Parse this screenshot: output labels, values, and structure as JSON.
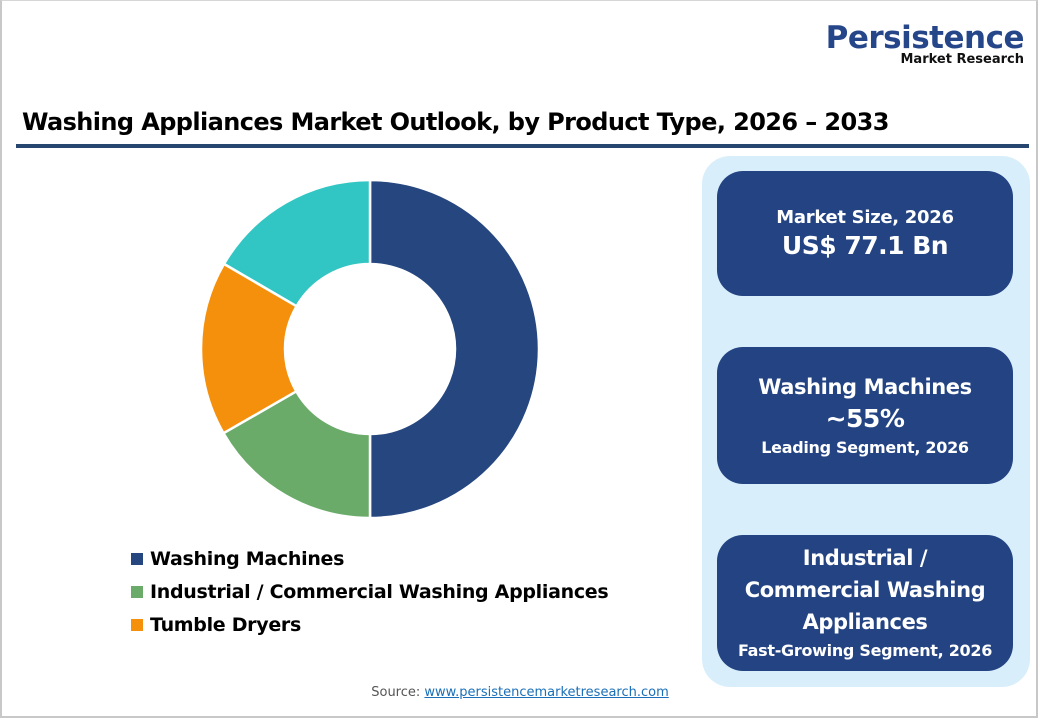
{
  "logo": {
    "main": "Persistence",
    "sub": "Market Research"
  },
  "title": "Washing Appliances Market Outlook, by Product Type, 2026 – 2033",
  "chart_data": {
    "type": "pie",
    "variant": "donut",
    "title": "Washing Appliances Market Outlook, by Product Type, 2026 – 2033",
    "categories": [
      "Washing Machines",
      "Industrial / Commercial Washing Appliances",
      "Tumble Dryers",
      ""
    ],
    "values": [
      50,
      16.7,
      16.7,
      16.6
    ],
    "colors": [
      "#25467f",
      "#6aab69",
      "#f5900c",
      "#31c6c3"
    ],
    "legend": [
      "Washing Machines",
      "Industrial / Commercial Washing Appliances",
      "Tumble Dryers"
    ],
    "legend_position": "bottom-left",
    "start_angle_deg": 0,
    "direction": "clockwise",
    "center": [
      370,
      349
    ],
    "outer_radius": 169,
    "inner_radius": 85
  },
  "legend": {
    "items": [
      {
        "label": "Washing Machines",
        "color": "#25467f"
      },
      {
        "label": "Industrial / Commercial Washing Appliances",
        "color": "#6aab69"
      },
      {
        "label": "Tumble Dryers",
        "color": "#f5900c"
      }
    ]
  },
  "panel": {
    "bg_color": "#d9eefb",
    "card_color": "#234382",
    "cards": [
      {
        "label": "Market Size, 2026",
        "value": "US$ 77.1 Bn"
      },
      {
        "label": "Washing Machines",
        "value": "~55%",
        "sub": "Leading Segment, 2026"
      },
      {
        "label_lines": [
          "Industrial /",
          "Commercial Washing",
          "Appliances"
        ],
        "sub": "Fast-Growing Segment, 2026"
      }
    ]
  },
  "source": {
    "prefix": "Source: ",
    "link": "www.persistencemarketresearch.com"
  }
}
